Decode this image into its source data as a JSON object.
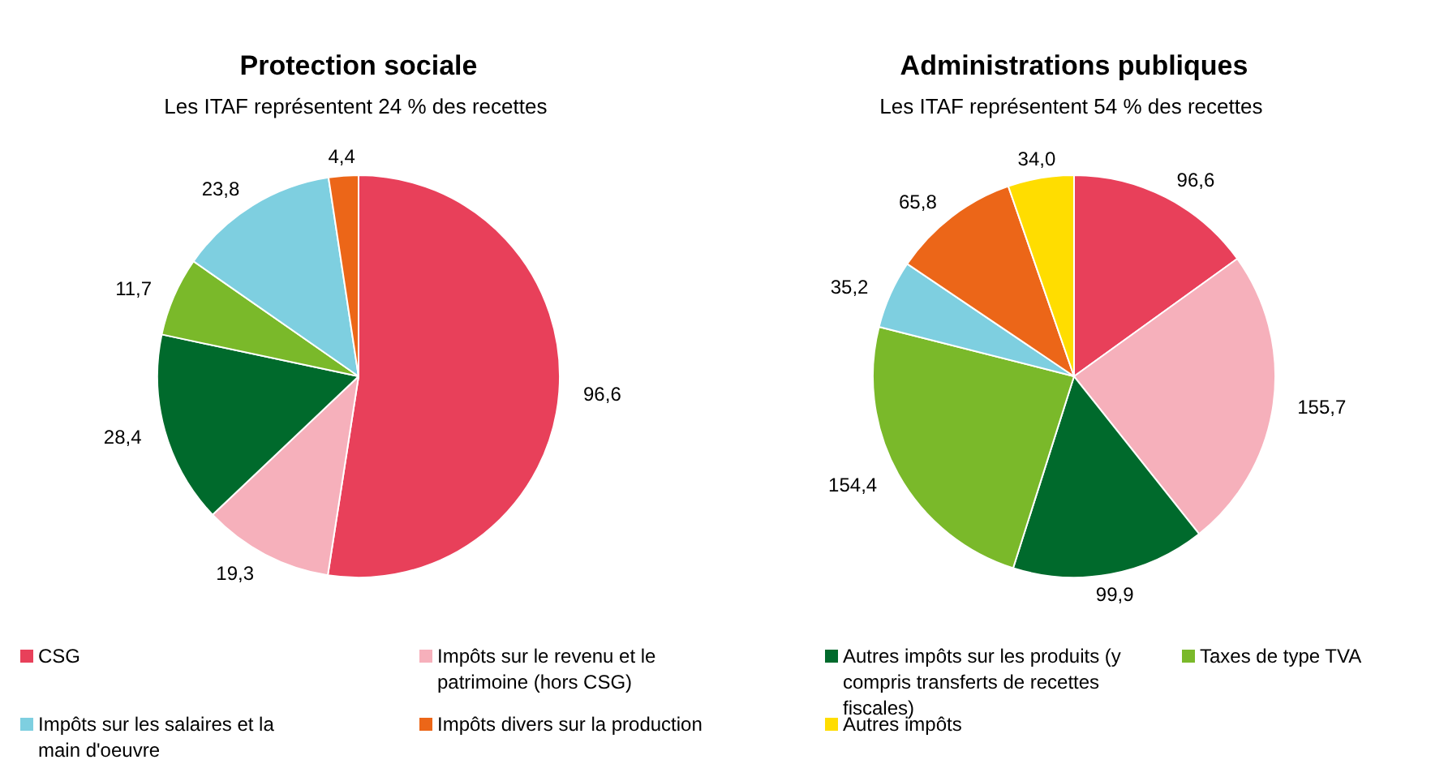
{
  "chart_data": [
    {
      "type": "pie",
      "title": "Protection sociale",
      "subtitle": "Les ITAF représentent  24 % des recettes",
      "categories": [
        null,
        null,
        null,
        null,
        null,
        null
      ],
      "values": [
        96.6,
        19.3,
        28.4,
        11.7,
        23.8,
        4.4
      ],
      "value_labels": [
        "96,6",
        "19,3",
        "28,4",
        "11,7",
        "23,8",
        "4,4"
      ],
      "colors": [
        "#e8405a",
        "#f6b0bb",
        "#006a2c",
        "#7ab92a",
        "#7ecfe0",
        "#ec6618"
      ]
    },
    {
      "type": "pie",
      "title": "Administrations publiques",
      "subtitle": "Les ITAF représentent  54 % des recettes",
      "legend": "bottom",
      "categories": [
        "CSG",
        "Impôts sur le revenu et le patrimoine (hors CSG)",
        "Autres impôts sur les produits (y compris transferts de recettes fiscales)",
        "Taxes de type TVA",
        "Impôts sur les salaires et la main d'oeuvre",
        "Impôts divers sur la production",
        "Autres impôts"
      ],
      "values": [
        96.6,
        155.7,
        99.9,
        154.4,
        35.2,
        65.8,
        34.0
      ],
      "value_labels": [
        "96,6",
        "155,7",
        "99,9",
        "154,4",
        "35,2",
        "65,8",
        "34,0"
      ],
      "colors": [
        "#e8405a",
        "#f6b0bb",
        "#006a2c",
        "#7ab92a",
        "#7ecfe0",
        "#ec6618",
        "#ffdd00"
      ]
    }
  ]
}
